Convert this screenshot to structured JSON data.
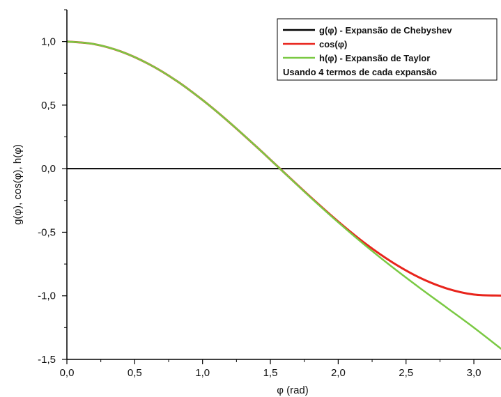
{
  "chart_data": {
    "type": "line",
    "title": "",
    "xlabel": "φ (rad)",
    "ylabel": "g(φ), cos(φ), h(φ)",
    "xlim": [
      0,
      3.2
    ],
    "ylim": [
      -1.5,
      1.25
    ],
    "x_ticks": [
      0,
      0.5,
      1.0,
      1.5,
      2.0,
      2.5,
      3.0
    ],
    "x_tick_labels": [
      "0,0",
      "0,5",
      "1,0",
      "1,5",
      "2,0",
      "2,5",
      "3,0"
    ],
    "y_ticks": [
      -1.5,
      -1.0,
      -0.5,
      0.0,
      0.5,
      1.0
    ],
    "y_tick_labels": [
      "-1,5",
      "-1,0",
      "-0,5",
      "0,0",
      "0,5",
      "1,0"
    ],
    "grid": false,
    "legend_position": "top-right",
    "legend_note": "Usando 4 termos de cada expansão",
    "series": [
      {
        "name": "g(φ) - Expansão de Chebyshev",
        "color": "#000000",
        "x": [
          0,
          3.2
        ],
        "y": [
          0.0,
          0.0
        ]
      },
      {
        "name": "cos(φ)",
        "color": "#e8241c",
        "x": [
          0.0,
          0.2,
          0.4,
          0.6,
          0.8,
          1.0,
          1.2,
          1.4,
          1.6,
          1.8,
          2.0,
          2.2,
          2.4,
          2.6,
          2.8,
          3.0,
          3.2
        ],
        "y": [
          1.0,
          0.98,
          0.921,
          0.825,
          0.697,
          0.54,
          0.362,
          0.17,
          -0.029,
          -0.227,
          -0.416,
          -0.589,
          -0.737,
          -0.857,
          -0.942,
          -0.99,
          -0.998
        ]
      },
      {
        "name": "h(φ) - Expansão de Taylor",
        "color": "#7ac943",
        "x": [
          0.0,
          0.2,
          0.4,
          0.6,
          0.8,
          1.0,
          1.2,
          1.4,
          1.6,
          1.8,
          2.0,
          2.2,
          2.4,
          2.6,
          2.8,
          3.0,
          3.2
        ],
        "y": [
          1.0,
          0.98,
          0.921,
          0.825,
          0.697,
          0.54,
          0.362,
          0.17,
          -0.03,
          -0.23,
          -0.422,
          -0.604,
          -0.775,
          -0.937,
          -1.093,
          -1.25,
          -1.416
        ]
      }
    ]
  }
}
